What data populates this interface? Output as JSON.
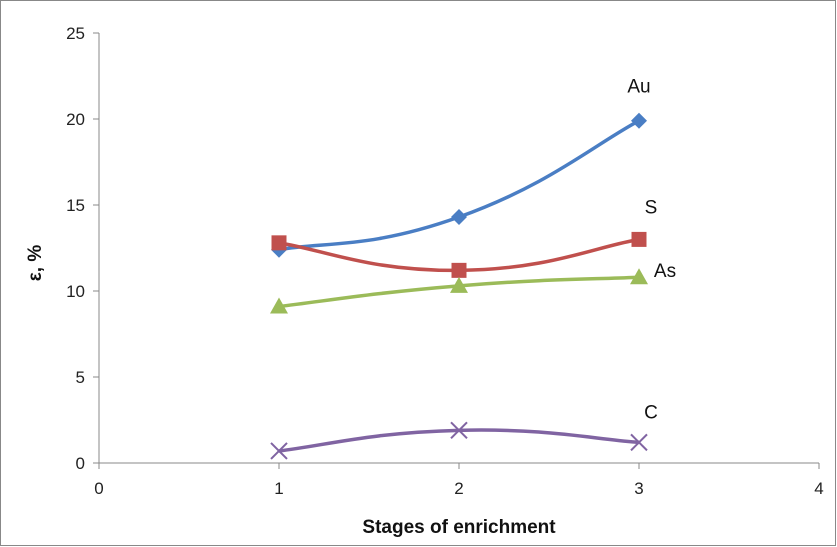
{
  "chart_data": {
    "type": "line",
    "xlabel": "Stages of enrichment",
    "ylabel": "ε, %",
    "xlim": [
      0,
      4
    ],
    "ylim": [
      0,
      25
    ],
    "x_ticks": [
      "0",
      "1",
      "2",
      "3",
      "4"
    ],
    "y_ticks": [
      "0",
      "5",
      "10",
      "15",
      "20",
      "25"
    ],
    "grid": false,
    "legend": "none",
    "series": [
      {
        "name": "Au",
        "x": [
          1,
          2,
          3
        ],
        "y": [
          12.4,
          14.3,
          19.9
        ],
        "color": "#4a7ec4",
        "marker": "diamond"
      },
      {
        "name": "S",
        "x": [
          1,
          2,
          3
        ],
        "y": [
          12.8,
          11.2,
          13.0
        ],
        "color": "#c0504d",
        "marker": "square"
      },
      {
        "name": "As",
        "x": [
          1,
          2,
          3
        ],
        "y": [
          9.1,
          10.3,
          10.8
        ],
        "color": "#9bbb59",
        "marker": "triangle"
      },
      {
        "name": "C",
        "x": [
          1,
          2,
          3
        ],
        "y": [
          0.7,
          1.9,
          1.2
        ],
        "color": "#8064a2",
        "marker": "x"
      }
    ]
  }
}
